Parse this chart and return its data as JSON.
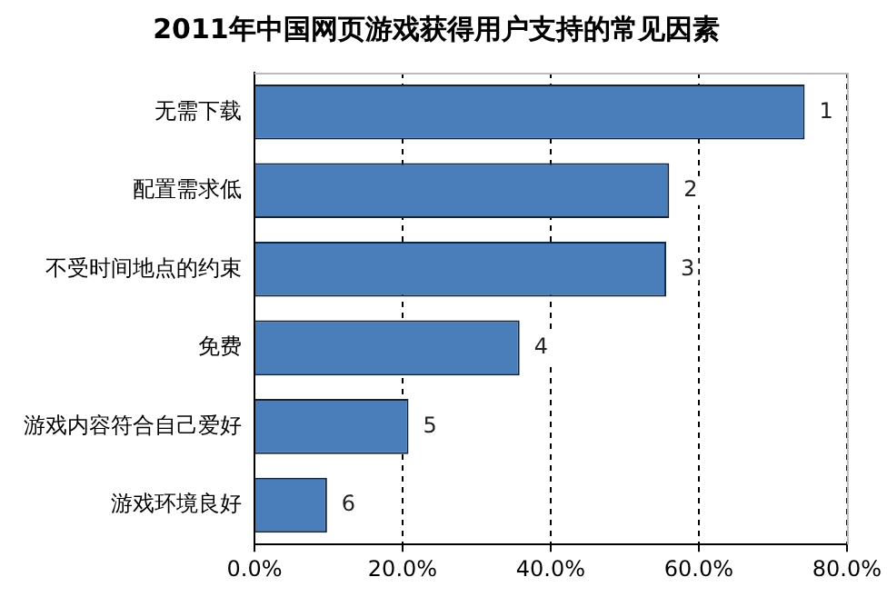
{
  "chart_data": {
    "type": "bar",
    "orientation": "horizontal",
    "title": "2011年中国网页游戏获得用户支持的常见因素",
    "categories": [
      "无需下载",
      "配置需求低",
      "不受时间地点的约束",
      "免费",
      "游戏内容符合自己爱好",
      "游戏环境良好"
    ],
    "values": [
      74.3,
      56.0,
      55.6,
      35.8,
      20.8,
      9.8
    ],
    "annotations": [
      {
        "text": "1",
        "x": 74.3,
        "y": "无需下载"
      },
      {
        "text": "2",
        "x": 56.0,
        "y": "配置需求低"
      },
      {
        "text": "3",
        "x": 55.6,
        "y": "不受时间地点的约束"
      },
      {
        "text": "4",
        "x": 35.8,
        "y": "免费"
      },
      {
        "text": "5",
        "x": 20.8,
        "y": "游戏内容符合自己爱好"
      },
      {
        "text": "6",
        "x": 9.8,
        "y": "游戏环境良好"
      }
    ],
    "color": "#4a7ebb",
    "xlim": [
      0,
      80
    ],
    "xticks": [
      {
        "value": 0,
        "label": "0.0%"
      },
      {
        "value": 20,
        "label": "20.0%"
      },
      {
        "value": 40,
        "label": "40.0%"
      },
      {
        "value": 60,
        "label": "60.0%"
      },
      {
        "value": 80,
        "label": "80.0%"
      }
    ],
    "grid": "x"
  }
}
